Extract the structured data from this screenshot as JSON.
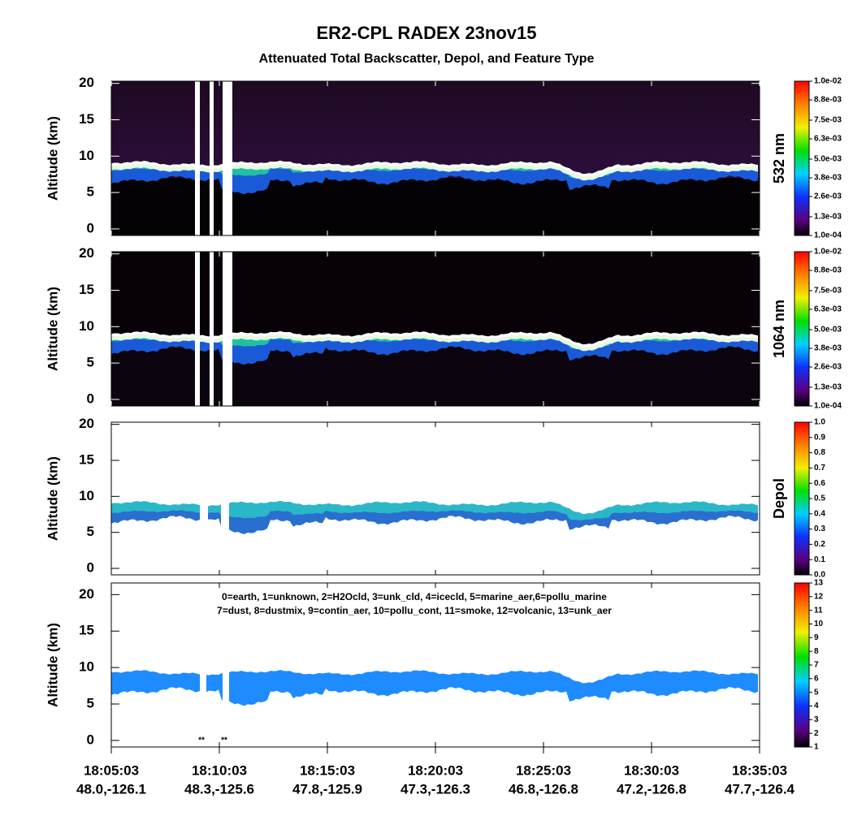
{
  "header": {
    "title": "ER2-CPL RADEX 23nov15",
    "subtitle": "Attenuated Total Backscatter, Depol, and Feature Type"
  },
  "x_axis": {
    "xlim": [
      "18:05:03",
      "18:35:03"
    ],
    "xticks": [
      "18:05:03",
      "18:10:03",
      "18:15:03",
      "18:20:03",
      "18:25:03",
      "18:30:03",
      "18:35:03"
    ],
    "location_labels": [
      "48.0,-126.1",
      "48.3,-125.6",
      "47.8,-125.9",
      "47.3,-126.3",
      "46.8,-126.8",
      "47.2,-126.8",
      "47.7,-126.4"
    ]
  },
  "chart_data": [
    {
      "type": "heatmap",
      "ylabel": "Altitude (km)",
      "ylim": [
        -0.9,
        20.3
      ],
      "yticks": [
        0,
        5,
        10,
        15,
        20
      ],
      "colorbar": {
        "label": "532 nm",
        "clim": [
          0.0001,
          0.01
        ],
        "ticks": [
          {
            "value": 0.0001,
            "label": "1.0e-04"
          },
          {
            "value": 0.0013,
            "label": "1.3e-03"
          },
          {
            "value": 0.0026,
            "label": "2.6e-03"
          },
          {
            "value": 0.0038,
            "label": "3.8e-03"
          },
          {
            "value": 0.005,
            "label": "5.0e-03"
          },
          {
            "value": 0.0063,
            "label": "6.3e-03"
          },
          {
            "value": 0.0075,
            "label": "7.5e-03"
          },
          {
            "value": 0.0088,
            "label": "8.8e-03"
          },
          {
            "value": 0.01,
            "label": "1.0e-02"
          }
        ]
      }
    },
    {
      "type": "heatmap",
      "ylabel": "Altitude (km)",
      "ylim": [
        -0.9,
        20.3
      ],
      "yticks": [
        0,
        5,
        10,
        15,
        20
      ],
      "colorbar": {
        "label": "1064 nm",
        "clim": [
          0.0001,
          0.01
        ],
        "ticks": [
          {
            "value": 0.0001,
            "label": "1.0e-04"
          },
          {
            "value": 0.0013,
            "label": "1.3e-03"
          },
          {
            "value": 0.0026,
            "label": "2.6e-03"
          },
          {
            "value": 0.0038,
            "label": "3.8e-03"
          },
          {
            "value": 0.005,
            "label": "5.0e-03"
          },
          {
            "value": 0.0063,
            "label": "6.3e-03"
          },
          {
            "value": 0.0075,
            "label": "7.5e-03"
          },
          {
            "value": 0.0088,
            "label": "8.8e-03"
          },
          {
            "value": 0.01,
            "label": "1.0e-02"
          }
        ]
      }
    },
    {
      "type": "heatmap",
      "ylabel": "Altitude (km)",
      "ylim": [
        -0.9,
        20.3
      ],
      "yticks": [
        0,
        5,
        10,
        15,
        20
      ],
      "colorbar": {
        "label": "Depol",
        "clim": [
          0,
          1
        ],
        "ticks": [
          {
            "value": 0,
            "label": "0.0"
          },
          0.1,
          0.2,
          0.3,
          0.4,
          0.5,
          0.6,
          0.7,
          0.8,
          0.9,
          {
            "value": 1,
            "label": "1.0"
          }
        ]
      }
    },
    {
      "type": "heatmap",
      "ylabel": "Altitude (km)",
      "ylim": [
        -0.9,
        21.6
      ],
      "yticks": [
        0,
        5,
        10,
        15,
        20
      ],
      "annotation": [
        "0=earth, 1=unknown, 2=H2Ocld, 3=unk_cld, 4=icecld, 5=marine_aer,6=pollu_marine",
        "7=dust, 8=dustmix, 9=contin_aer, 10=pollu_cont, 11=smoke, 12=volcanic, 13=unk_aer"
      ],
      "colorbar": {
        "clim": [
          1,
          13
        ],
        "ticks": [
          1,
          2,
          3,
          4,
          5,
          6,
          7,
          8,
          9,
          10,
          11,
          12,
          13
        ]
      }
    }
  ]
}
